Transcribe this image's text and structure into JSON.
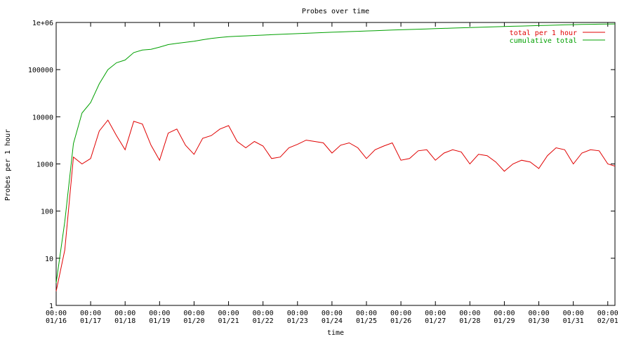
{
  "chart_data": {
    "type": "line",
    "title": "Probes over time",
    "xlabel": "time",
    "ylabel": "Probes per 1 hour",
    "log_y": true,
    "grid": false,
    "legend": "top-right",
    "x": [
      "01/16 00:00",
      "01/16 06:00",
      "01/16 12:00",
      "01/16 18:00",
      "01/17 00:00",
      "01/17 06:00",
      "01/17 12:00",
      "01/17 18:00",
      "01/18 00:00",
      "01/18 06:00",
      "01/18 12:00",
      "01/18 18:00",
      "01/19 00:00",
      "01/19 06:00",
      "01/19 12:00",
      "01/19 18:00",
      "01/20 00:00",
      "01/20 06:00",
      "01/20 12:00",
      "01/20 18:00",
      "01/21 00:00",
      "01/21 06:00",
      "01/21 12:00",
      "01/21 18:00",
      "01/22 00:00",
      "01/22 06:00",
      "01/22 12:00",
      "01/22 18:00",
      "01/23 00:00",
      "01/23 06:00",
      "01/23 12:00",
      "01/23 18:00",
      "01/24 00:00",
      "01/24 06:00",
      "01/24 12:00",
      "01/24 18:00",
      "01/25 00:00",
      "01/25 06:00",
      "01/25 12:00",
      "01/25 18:00",
      "01/26 00:00",
      "01/26 06:00",
      "01/26 12:00",
      "01/26 18:00",
      "01/27 00:00",
      "01/27 06:00",
      "01/27 12:00",
      "01/27 18:00",
      "01/28 00:00",
      "01/28 06:00",
      "01/28 12:00",
      "01/28 18:00",
      "01/29 00:00",
      "01/29 06:00",
      "01/29 12:00",
      "01/29 18:00",
      "01/30 00:00",
      "01/30 06:00",
      "01/30 12:00",
      "01/30 18:00",
      "01/31 00:00",
      "01/31 06:00",
      "01/31 12:00",
      "01/31 18:00",
      "02/01 00:00",
      "02/01 05:00"
    ],
    "series": [
      {
        "name": "total per 1 hour",
        "color": "#e00000",
        "values": [
          2,
          15,
          1400,
          1000,
          1300,
          5000,
          8500,
          4000,
          2000,
          8000,
          7000,
          2500,
          1200,
          4500,
          5500,
          2500,
          1600,
          3500,
          4000,
          5500,
          6500,
          3000,
          2200,
          3000,
          2400,
          1300,
          1400,
          2200,
          2600,
          3200,
          3000,
          2800,
          1700,
          2500,
          2800,
          2200,
          1300,
          2000,
          2400,
          2800,
          1200,
          1300,
          1900,
          2000,
          1200,
          1700,
          2000,
          1800,
          1000,
          1600,
          1500,
          1100,
          700,
          1000,
          1200,
          1100,
          800,
          1500,
          2200,
          2000,
          1000,
          1700,
          2000,
          1900,
          1000,
          900
        ]
      },
      {
        "name": "cumulative total",
        "color": "#00a000",
        "values": [
          3,
          60,
          2700,
          12000,
          20000,
          50000,
          100000,
          140000,
          160000,
          230000,
          260000,
          270000,
          300000,
          340000,
          360000,
          380000,
          400000,
          430000,
          460000,
          480000,
          500000,
          510000,
          520000,
          530000,
          540000,
          550000,
          560000,
          570000,
          580000,
          590000,
          600000,
          610000,
          620000,
          630000,
          640000,
          650000,
          660000,
          670000,
          680000,
          690000,
          700000,
          710000,
          720000,
          730000,
          740000,
          750000,
          760000,
          770000,
          780000,
          790000,
          800000,
          810000,
          820000,
          830000,
          840000,
          850000,
          860000,
          870000,
          880000,
          890000,
          900000,
          910000,
          915000,
          920000,
          925000,
          930000
        ]
      }
    ],
    "xlim": [
      "01/16 00:00",
      "02/01 05:00"
    ],
    "xticks": [
      {
        "value": "01/16 00:00",
        "label": [
          "00:00",
          "01/16"
        ]
      },
      {
        "value": "01/17 00:00",
        "label": [
          "00:00",
          "01/17"
        ]
      },
      {
        "value": "01/18 00:00",
        "label": [
          "00:00",
          "01/18"
        ]
      },
      {
        "value": "01/19 00:00",
        "label": [
          "00:00",
          "01/19"
        ]
      },
      {
        "value": "01/20 00:00",
        "label": [
          "00:00",
          "01/20"
        ]
      },
      {
        "value": "01/21 00:00",
        "label": [
          "00:00",
          "01/21"
        ]
      },
      {
        "value": "01/22 00:00",
        "label": [
          "00:00",
          "01/22"
        ]
      },
      {
        "value": "01/23 00:00",
        "label": [
          "00:00",
          "01/23"
        ]
      },
      {
        "value": "01/24 00:00",
        "label": [
          "00:00",
          "01/24"
        ]
      },
      {
        "value": "01/25 00:00",
        "label": [
          "00:00",
          "01/25"
        ]
      },
      {
        "value": "01/26 00:00",
        "label": [
          "00:00",
          "01/26"
        ]
      },
      {
        "value": "01/27 00:00",
        "label": [
          "00:00",
          "01/27"
        ]
      },
      {
        "value": "01/28 00:00",
        "label": [
          "00:00",
          "01/28"
        ]
      },
      {
        "value": "01/29 00:00",
        "label": [
          "00:00",
          "01/29"
        ]
      },
      {
        "value": "01/30 00:00",
        "label": [
          "00:00",
          "01/30"
        ]
      },
      {
        "value": "01/31 00:00",
        "label": [
          "00:00",
          "01/31"
        ]
      },
      {
        "value": "02/01 00:00",
        "label": [
          "00:00",
          "02/01"
        ]
      }
    ],
    "ylim": [
      1,
      1000000
    ],
    "yticks": [
      1,
      10,
      100,
      1000,
      10000,
      100000,
      {
        "value": 1000000,
        "label": "1e+06"
      }
    ]
  }
}
